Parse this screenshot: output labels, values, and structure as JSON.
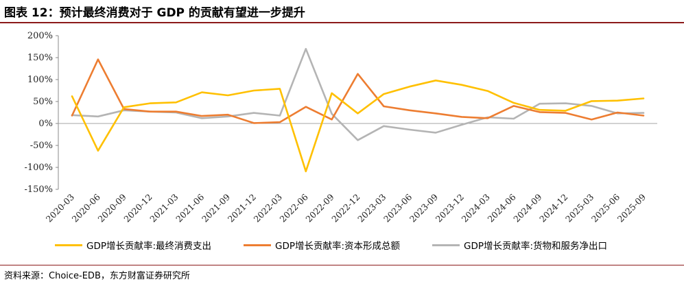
{
  "title": "图表 12：预计最终消费对于 GDP 的贡献有望进一步提升",
  "source": "资料来源：Choice-EDB，东方财富证券研究所",
  "chart_data": {
    "type": "line",
    "title": "图表 12：预计最终消费对于 GDP 的贡献有望进一步提升",
    "xlabel": "",
    "ylabel": "",
    "ylim": [
      -150,
      200
    ],
    "yticks": [
      -150,
      -100,
      -50,
      0,
      50,
      100,
      150,
      200
    ],
    "ytick_labels": [
      "-150%",
      "-100%",
      "-50%",
      "0%",
      "50%",
      "100%",
      "150%",
      "200%"
    ],
    "grid": false,
    "legend_position": "bottom",
    "categories": [
      "2020-03",
      "2020-06",
      "2020-09",
      "2020-12",
      "2021-03",
      "2021-06",
      "2021-09",
      "2021-12",
      "2022-03",
      "2022-06",
      "2022-09",
      "2022-12",
      "2023-03",
      "2023-06",
      "2023-09",
      "2023-12",
      "2024-03",
      "2024-06",
      "2024-09",
      "2024-12",
      "2025-03",
      "2025-06",
      "2025-09"
    ],
    "series": [
      {
        "name": "GDP增长贡献率:最终消费支出",
        "color": "#FFC000",
        "values": [
          62,
          -62,
          37,
          46,
          48,
          71,
          64,
          75,
          79,
          -109,
          69,
          23,
          67,
          84,
          98,
          88,
          74,
          47,
          31,
          29,
          51,
          52,
          57
        ]
      },
      {
        "name": "GDP增长贡献率:资本形成总额",
        "color": "#ED7D31",
        "values": [
          18,
          146,
          33,
          27,
          27,
          17,
          20,
          1,
          3,
          38,
          9,
          113,
          39,
          30,
          23,
          15,
          12,
          40,
          26,
          24,
          9,
          25,
          18
        ]
      },
      {
        "name": "GDP增长贡献率:货物和服务净出口",
        "color": "#B4B4B4",
        "values": [
          19,
          16,
          30,
          27,
          25,
          12,
          16,
          24,
          18,
          170,
          22,
          -38,
          -6,
          -14,
          -21,
          -3,
          14,
          11,
          45,
          46,
          40,
          23,
          24
        ]
      }
    ]
  }
}
